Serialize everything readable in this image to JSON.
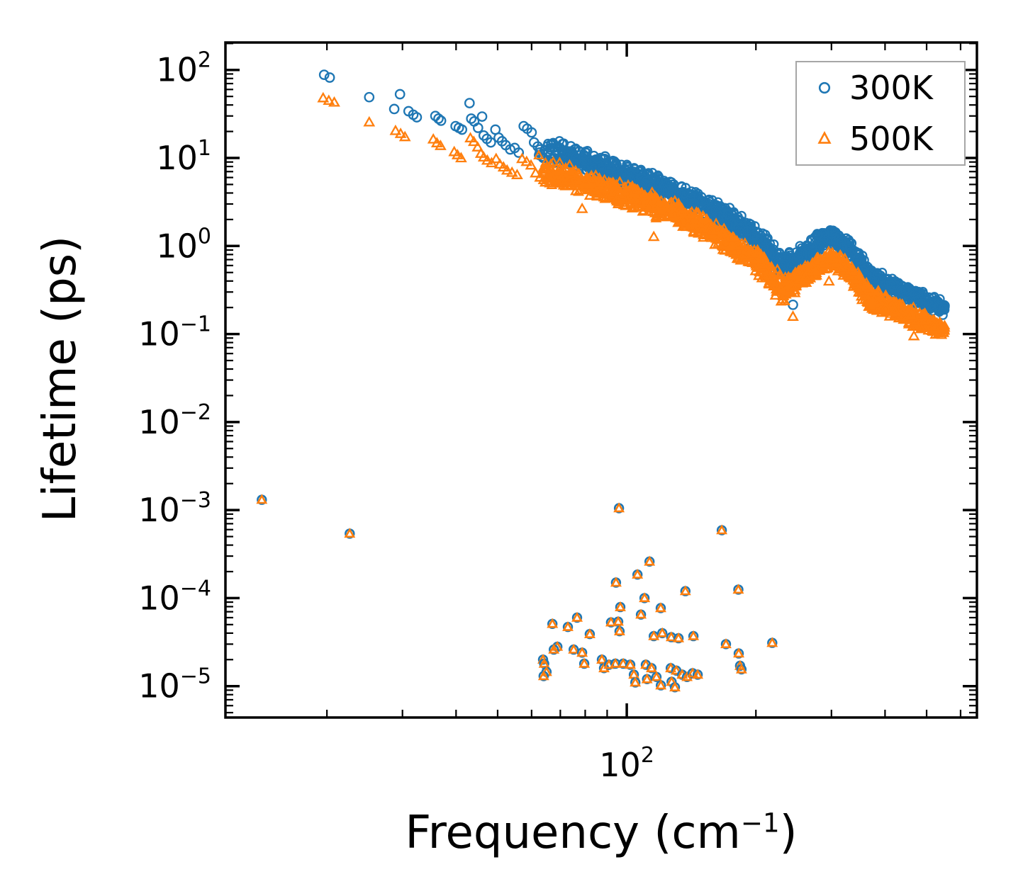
{
  "chart_data": {
    "type": "scatter",
    "title": "",
    "xlabel": "Frequency (cm⁻¹)",
    "xlabel_parts": {
      "main": "Frequency (cm",
      "sup": "−1",
      "close": ")"
    },
    "ylabel": "Lifetime (ps)",
    "xscale": "log",
    "yscale": "log",
    "xlim": [
      11.6,
      655
    ],
    "ylim": [
      4.4e-06,
      205
    ],
    "grid": false,
    "x_ticks": {
      "major_value": 100,
      "major_label": {
        "base": "10",
        "exp": "2"
      },
      "minor_values": [
        20,
        30,
        40,
        50,
        60,
        70,
        80,
        90,
        200,
        300,
        400,
        500,
        600
      ]
    },
    "y_ticks": {
      "values": [
        100,
        10,
        1,
        0.1,
        0.01,
        0.001,
        0.0001,
        1e-05
      ],
      "exponents": [
        "2",
        "1",
        "0",
        "−1",
        "−2",
        "−3",
        "−4",
        "−5"
      ],
      "base": "10"
    },
    "legend": {
      "position": "upper right",
      "border_color": "#a6a6a6",
      "entries": [
        {
          "label": "300K",
          "marker": "circle",
          "color": "#1f77b4"
        },
        {
          "label": "500K",
          "marker": "triangle",
          "color": "#ff7f0e"
        }
      ]
    },
    "series": [
      {
        "name": "300K",
        "color": "#1f77b4",
        "marker": "circle",
        "sparse_points": [
          [
            19.7,
            88
          ],
          [
            20.3,
            82
          ],
          [
            25.1,
            49
          ],
          [
            28.7,
            36
          ],
          [
            29.6,
            53
          ],
          [
            31.0,
            34
          ],
          [
            31.8,
            31
          ],
          [
            32.4,
            29
          ],
          [
            35.8,
            30
          ],
          [
            36.4,
            28
          ],
          [
            36.9,
            26.5
          ],
          [
            39.9,
            23
          ],
          [
            40.6,
            22
          ],
          [
            41.3,
            21
          ],
          [
            43.0,
            42
          ],
          [
            43.4,
            28
          ],
          [
            44.1,
            26
          ],
          [
            45.0,
            22
          ],
          [
            46.0,
            29.5
          ],
          [
            46.4,
            18
          ],
          [
            47.2,
            16.5
          ],
          [
            48.2,
            15
          ],
          [
            49.4,
            21
          ],
          [
            50.3,
            17
          ],
          [
            51.2,
            15.5
          ],
          [
            52.2,
            14
          ],
          [
            53.5,
            12.5
          ],
          [
            54.8,
            13
          ],
          [
            56.0,
            11.5
          ],
          [
            57.5,
            23
          ],
          [
            58.6,
            21.5
          ],
          [
            60.0,
            19.5
          ],
          [
            60.8,
            15
          ],
          [
            62.0,
            13.5
          ],
          [
            62.8,
            12.5
          ]
        ],
        "extra_points": [
          [
            240,
            0.37
          ],
          [
            244,
            0.215
          ],
          [
            89,
            10.4
          ]
        ],
        "band": {
          "f_range": [
            62,
            552
          ],
          "n_points": 1500,
          "anchors_f": [
            62,
            70,
            80,
            90,
            100,
            110,
            120,
            130,
            140,
            150,
            160,
            170,
            180,
            190,
            200,
            212,
            222,
            230,
            240,
            252,
            265,
            280,
            296,
            312,
            330,
            350,
            372,
            400,
            430,
            470,
            505,
            552
          ],
          "anchors_L": [
            13,
            11.5,
            9.2,
            7.4,
            6.3,
            5.3,
            4.6,
            4.0,
            3.5,
            3.0,
            2.5,
            2.1,
            1.75,
            1.45,
            1.25,
            0.95,
            0.7,
            0.6,
            0.62,
            0.75,
            0.88,
            1.1,
            1.28,
            1.18,
            0.92,
            0.62,
            0.44,
            0.37,
            0.32,
            0.27,
            0.235,
            0.195
          ],
          "spread_dex": [
            0.13,
            0.11,
            0.1,
            0.1,
            0.11,
            0.1,
            0.1,
            0.1,
            0.1,
            0.1,
            0.1,
            0.1,
            0.1,
            0.1,
            0.1,
            0.11,
            0.12,
            0.11,
            0.1,
            0.09,
            0.09,
            0.08,
            0.08,
            0.08,
            0.09,
            0.1,
            0.09,
            0.08,
            0.08,
            0.08,
            0.07,
            0.07
          ]
        }
      },
      {
        "name": "500K",
        "color": "#ff7f0e",
        "marker": "triangle",
        "sparse_points": [
          [
            19.6,
            47
          ],
          [
            20.2,
            44
          ],
          [
            20.8,
            42
          ],
          [
            25.1,
            25
          ],
          [
            28.9,
            20
          ],
          [
            29.7,
            18.5
          ],
          [
            30.4,
            17
          ],
          [
            35.4,
            16
          ],
          [
            36.1,
            14.5
          ],
          [
            36.8,
            13.5
          ],
          [
            39.6,
            11.5
          ],
          [
            40.3,
            10.6
          ],
          [
            41.1,
            9.8
          ],
          [
            43.2,
            16.5
          ],
          [
            44.0,
            15
          ],
          [
            44.9,
            13
          ],
          [
            45.7,
            11
          ],
          [
            46.4,
            10
          ],
          [
            47.3,
            9.2
          ],
          [
            48.4,
            8.6
          ],
          [
            49.6,
            9.6
          ],
          [
            50.6,
            8.3
          ],
          [
            51.6,
            7.7
          ],
          [
            52.6,
            7.1
          ],
          [
            54.0,
            6.7
          ],
          [
            55.5,
            6.3
          ],
          [
            57.0,
            9.6
          ],
          [
            58.4,
            8.9
          ],
          [
            59.8,
            8.1
          ],
          [
            61.3,
            6.6
          ],
          [
            62.8,
            5.9
          ]
        ],
        "extra_points": [
          [
            78.7,
            2.6
          ],
          [
            115.6,
            1.25
          ],
          [
            296,
            0.39
          ],
          [
            244,
            0.155
          ],
          [
            467,
            0.093
          ]
        ],
        "band": {
          "f_range": [
            62,
            552
          ],
          "n_points": 1500,
          "anchors_f": [
            62,
            70,
            80,
            90,
            100,
            110,
            120,
            130,
            140,
            150,
            160,
            170,
            180,
            190,
            200,
            212,
            222,
            230,
            240,
            252,
            265,
            280,
            296,
            312,
            330,
            350,
            372,
            400,
            430,
            470,
            505,
            552
          ],
          "anchors_L": [
            7.0,
            6.2,
            5.2,
            4.3,
            3.7,
            3.1,
            2.7,
            2.3,
            2.0,
            1.7,
            1.4,
            1.15,
            0.95,
            0.8,
            0.68,
            0.5,
            0.36,
            0.32,
            0.34,
            0.42,
            0.5,
            0.6,
            0.7,
            0.65,
            0.5,
            0.34,
            0.25,
            0.21,
            0.18,
            0.15,
            0.13,
            0.11
          ],
          "spread_dex": [
            0.13,
            0.11,
            0.1,
            0.1,
            0.11,
            0.1,
            0.1,
            0.1,
            0.1,
            0.1,
            0.1,
            0.1,
            0.1,
            0.1,
            0.1,
            0.12,
            0.13,
            0.12,
            0.1,
            0.09,
            0.09,
            0.08,
            0.08,
            0.08,
            0.09,
            0.1,
            0.1,
            0.09,
            0.08,
            0.08,
            0.07,
            0.07
          ]
        }
      }
    ],
    "paired_outliers": {
      "note": "low-lifetime modes where 300K circle and 500K triangle overlap",
      "points": [
        [
          14.1,
          0.00131
        ],
        [
          22.6,
          0.00054
        ],
        [
          95.9,
          0.00105
        ],
        [
          166.5,
          0.00059
        ],
        [
          113,
          0.00026
        ],
        [
          105.9,
          0.000185
        ],
        [
          94.4,
          0.00015
        ],
        [
          137,
          0.00012
        ],
        [
          182,
          0.000125
        ],
        [
          110,
          0.0001
        ],
        [
          120,
          7.7e-05
        ],
        [
          107.9,
          6.5e-05
        ],
        [
          96.6,
          7.9e-05
        ],
        [
          67.1,
          5.1e-05
        ],
        [
          72.9,
          4.7e-05
        ],
        [
          76.6,
          6e-05
        ],
        [
          82,
          3.9e-05
        ],
        [
          91.9,
          5.3e-05
        ],
        [
          95.5,
          5.4e-05
        ],
        [
          96.2,
          4.2e-05
        ],
        [
          115.6,
          3.7e-05
        ],
        [
          121,
          4e-05
        ],
        [
          127,
          3.6e-05
        ],
        [
          132,
          3.5e-05
        ],
        [
          143,
          3.7e-05
        ],
        [
          68.9,
          2.8e-05
        ],
        [
          67.6,
          2.6e-05
        ],
        [
          75.2,
          2.6e-05
        ],
        [
          78.7,
          2.4e-05
        ],
        [
          79.6,
          1.8e-05
        ],
        [
          87.5,
          2e-05
        ],
        [
          88.5,
          1.6e-05
        ],
        [
          90.9,
          1.75e-05
        ],
        [
          94.1,
          1.8e-05
        ],
        [
          98.1,
          1.8e-05
        ],
        [
          101.9,
          1.75e-05
        ],
        [
          103.9,
          1.35e-05
        ],
        [
          104.7,
          1.1e-05
        ],
        [
          110.8,
          1.75e-05
        ],
        [
          114.2,
          1.6e-05
        ],
        [
          117.3,
          1.27e-05
        ],
        [
          111.5,
          1.2e-05
        ],
        [
          126.6,
          1.6e-05
        ],
        [
          130.5,
          1.5e-05
        ],
        [
          134.6,
          1.35e-05
        ],
        [
          138.2,
          1.27e-05
        ],
        [
          142.4,
          1.4e-05
        ],
        [
          146.3,
          1.35e-05
        ],
        [
          127.2,
          1.12e-05
        ],
        [
          120.1,
          1.02e-05
        ],
        [
          129.5,
          9.7e-06
        ],
        [
          170.3,
          3e-05
        ],
        [
          182.4,
          2.35e-05
        ],
        [
          183.7,
          1.7e-05
        ],
        [
          185.1,
          1.55e-05
        ],
        [
          218.3,
          3.1e-05
        ],
        [
          63.8,
          2e-05
        ],
        [
          64.2,
          1.8e-05
        ],
        [
          65,
          1.45e-05
        ],
        [
          64,
          1.3e-05
        ]
      ]
    }
  }
}
